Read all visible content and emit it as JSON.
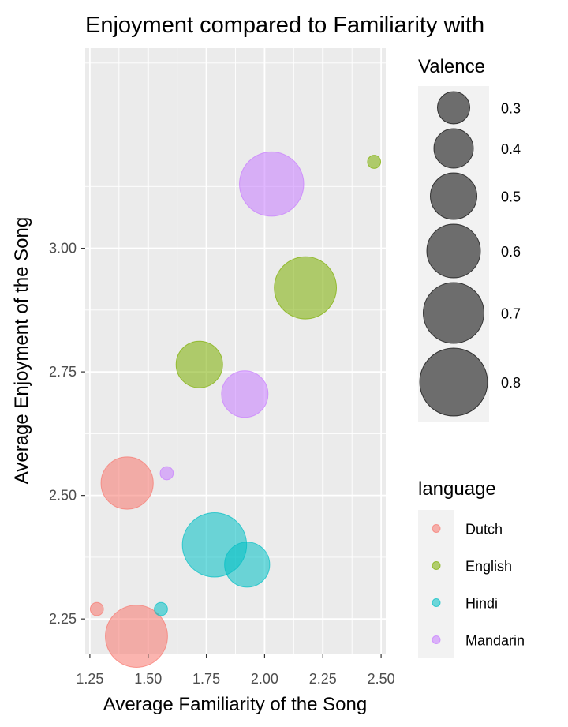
{
  "chart_data": {
    "type": "scatter",
    "title": "Enjoyment compared to Familiarity with",
    "xlabel": "Average Familiarity of the Song",
    "ylabel": "Average Enjoyment of the Song",
    "xlim": [
      1.23,
      2.52
    ],
    "ylim": [
      2.18,
      3.405
    ],
    "xticks": [
      "1.25",
      "1.50",
      "1.75",
      "2.00",
      "2.25",
      "2.50"
    ],
    "yticks": [
      "2.25",
      "2.50",
      "2.75",
      "3.00"
    ],
    "grid": true,
    "size_legend": {
      "title": "Valence",
      "values": [
        0.3,
        0.4,
        0.5,
        0.6,
        0.7,
        0.8
      ],
      "labels": [
        "0.3",
        "0.4",
        "0.5",
        "0.6",
        "0.7",
        "0.8"
      ]
    },
    "color_legend": {
      "title": "language",
      "entries": [
        {
          "name": "Dutch",
          "color": "#F8766D"
        },
        {
          "name": "English",
          "color": "#7CAE00"
        },
        {
          "name": "Hindi",
          "color": "#00BFC4"
        },
        {
          "name": "Mandarin",
          "color": "#C77CFF"
        }
      ]
    },
    "series": [
      {
        "name": "Dutch",
        "color": "#F8766D",
        "points": [
          {
            "x": 1.28,
            "y": 2.27,
            "valence": 0.03
          },
          {
            "x": 1.41,
            "y": 2.525,
            "valence": 0.58
          },
          {
            "x": 1.45,
            "y": 2.215,
            "valence": 0.72
          }
        ]
      },
      {
        "name": "English",
        "color": "#7CAE00",
        "points": [
          {
            "x": 2.47,
            "y": 3.175,
            "valence": 0.03
          },
          {
            "x": 1.72,
            "y": 2.765,
            "valence": 0.5
          },
          {
            "x": 2.175,
            "y": 2.92,
            "valence": 0.72
          }
        ]
      },
      {
        "name": "Hindi",
        "color": "#00BFC4",
        "points": [
          {
            "x": 1.555,
            "y": 2.27,
            "valence": 0.03
          },
          {
            "x": 1.785,
            "y": 2.4,
            "valence": 0.75
          },
          {
            "x": 1.925,
            "y": 2.36,
            "valence": 0.48
          }
        ]
      },
      {
        "name": "Mandarin",
        "color": "#C77CFF",
        "points": [
          {
            "x": 1.58,
            "y": 2.545,
            "valence": 0.03
          },
          {
            "x": 1.915,
            "y": 2.705,
            "valence": 0.5
          },
          {
            "x": 2.03,
            "y": 3.13,
            "valence": 0.75
          }
        ]
      }
    ]
  }
}
